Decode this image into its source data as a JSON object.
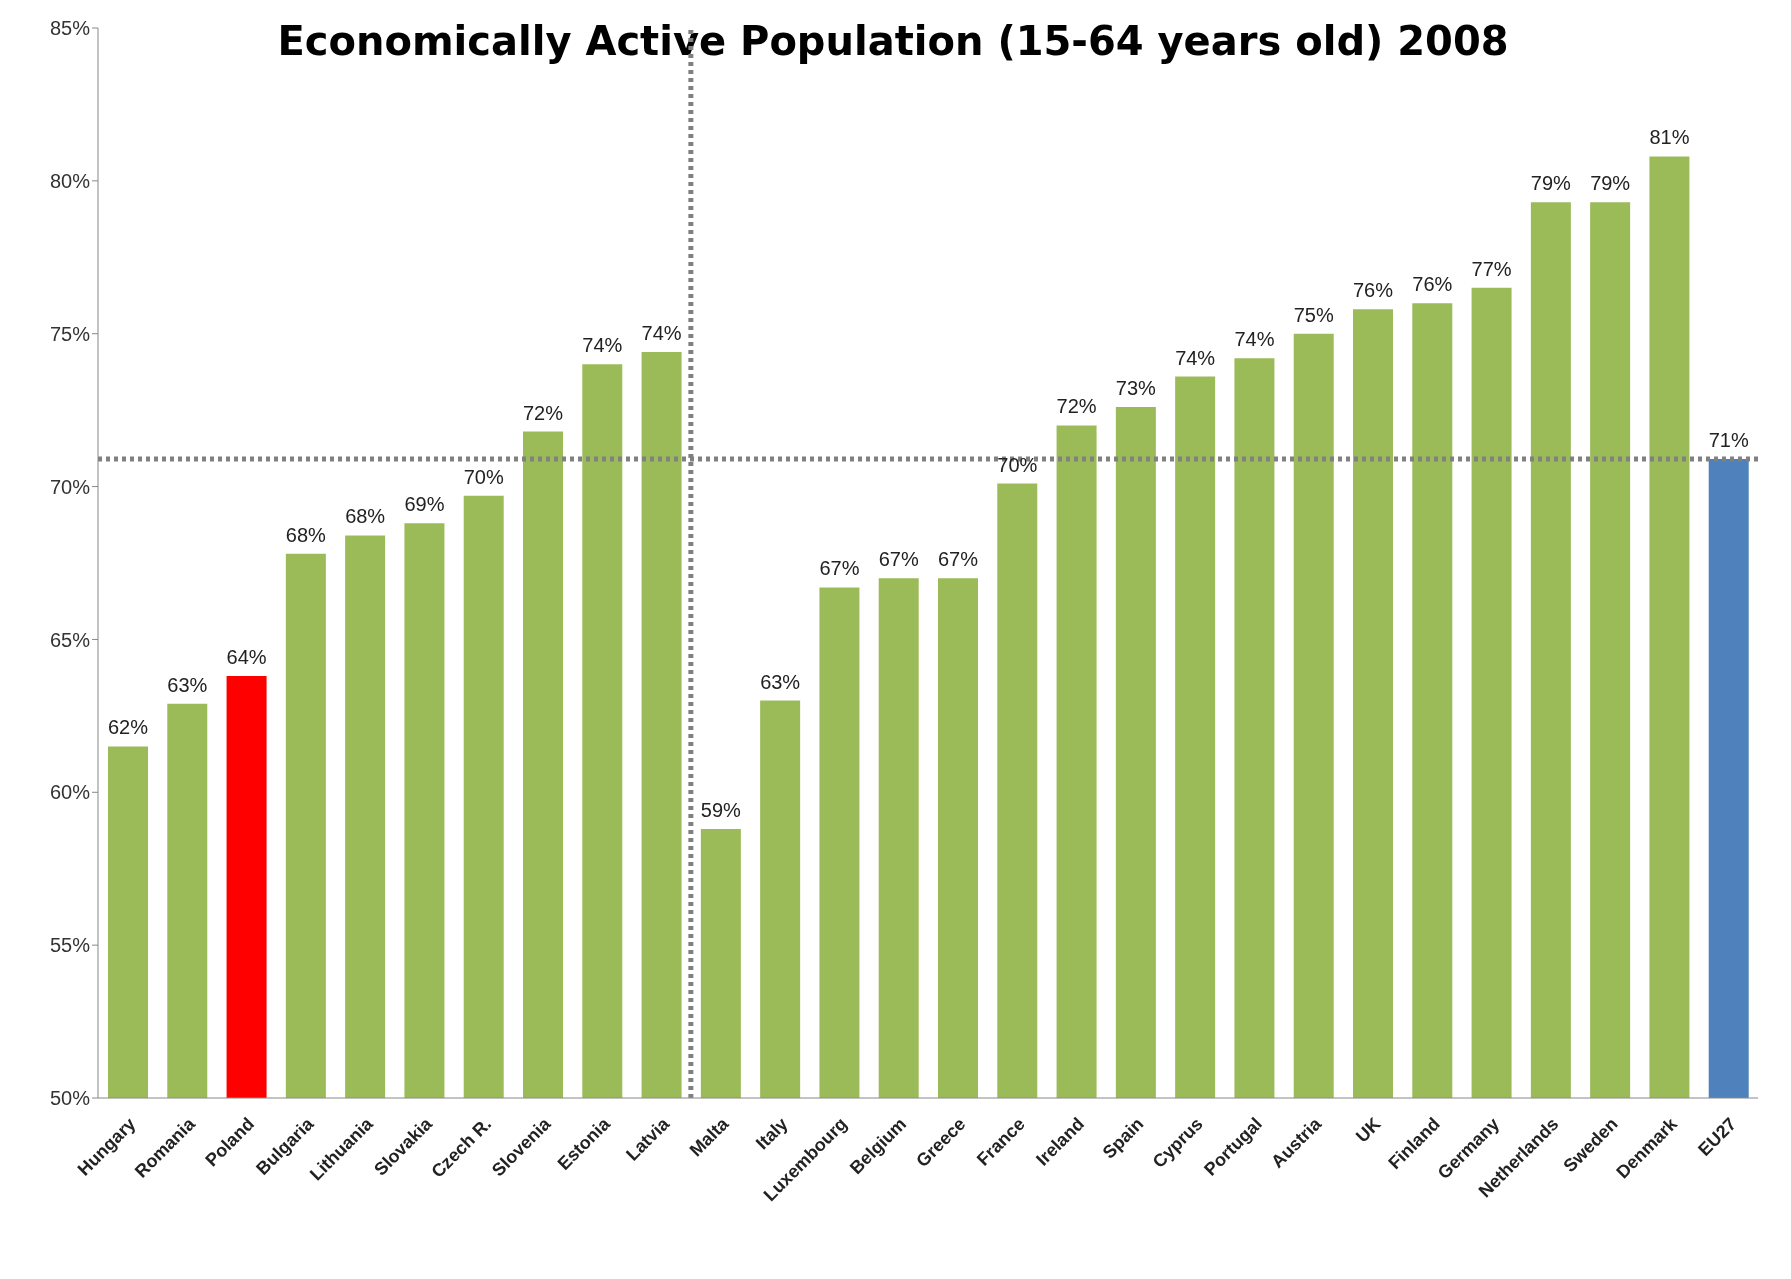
{
  "chart_data": {
    "type": "bar",
    "title": "Economically Active Population (15-64 years old) 2008",
    "categories": [
      "Hungary",
      "Romania",
      "Poland",
      "Bulgaria",
      "Lithuania",
      "Slovakia",
      "Czech R.",
      "Slovenia",
      "Estonia",
      "Latvia",
      "Malta",
      "Italy",
      "Luxembourg",
      "Belgium",
      "Greece",
      "France",
      "Ireland",
      "Spain",
      "Cyprus",
      "Portugal",
      "Austria",
      "UK",
      "Finland",
      "Germany",
      "Netherlands",
      "Sweden",
      "Denmark",
      "EU27"
    ],
    "values": [
      61.5,
      62.9,
      63.8,
      67.8,
      68.4,
      68.8,
      69.7,
      71.8,
      74.0,
      74.4,
      58.8,
      63.0,
      66.7,
      67.0,
      67.0,
      70.1,
      72.0,
      72.6,
      73.6,
      74.2,
      75.0,
      75.8,
      76.0,
      76.5,
      79.3,
      79.3,
      80.8,
      70.9
    ],
    "value_labels": [
      "62%",
      "63%",
      "64%",
      "68%",
      "68%",
      "69%",
      "70%",
      "72%",
      "74%",
      "74%",
      "59%",
      "63%",
      "67%",
      "67%",
      "67%",
      "70%",
      "72%",
      "73%",
      "74%",
      "74%",
      "75%",
      "76%",
      "76%",
      "77%",
      "79%",
      "79%",
      "81%",
      "71%"
    ],
    "colors": [
      "#9bbb59",
      "#9bbb59",
      "#ff0000",
      "#9bbb59",
      "#9bbb59",
      "#9bbb59",
      "#9bbb59",
      "#9bbb59",
      "#9bbb59",
      "#9bbb59",
      "#9bbb59",
      "#9bbb59",
      "#9bbb59",
      "#9bbb59",
      "#9bbb59",
      "#9bbb59",
      "#9bbb59",
      "#9bbb59",
      "#9bbb59",
      "#9bbb59",
      "#9bbb59",
      "#9bbb59",
      "#9bbb59",
      "#9bbb59",
      "#9bbb59",
      "#9bbb59",
      "#9bbb59",
      "#4f81bd"
    ],
    "ylim": [
      50,
      85
    ],
    "yticks": [
      {
        "value": 50,
        "label": "50%"
      },
      {
        "value": 55,
        "label": "55%"
      },
      {
        "value": 60,
        "label": "60%"
      },
      {
        "value": 65,
        "label": "65%"
      },
      {
        "value": 70,
        "label": "70%"
      },
      {
        "value": 75,
        "label": "75%"
      },
      {
        "value": 80,
        "label": "80%"
      },
      {
        "value": 85,
        "label": "85%"
      }
    ],
    "ref_lines": [
      {
        "axis": "y",
        "value": 70.9,
        "label": null,
        "color": "#808080",
        "line_style": "dotted"
      },
      {
        "axis": "x",
        "value": "Malta",
        "label": null,
        "color": "#808080",
        "line_style": "dotted"
      }
    ],
    "legend": false
  }
}
